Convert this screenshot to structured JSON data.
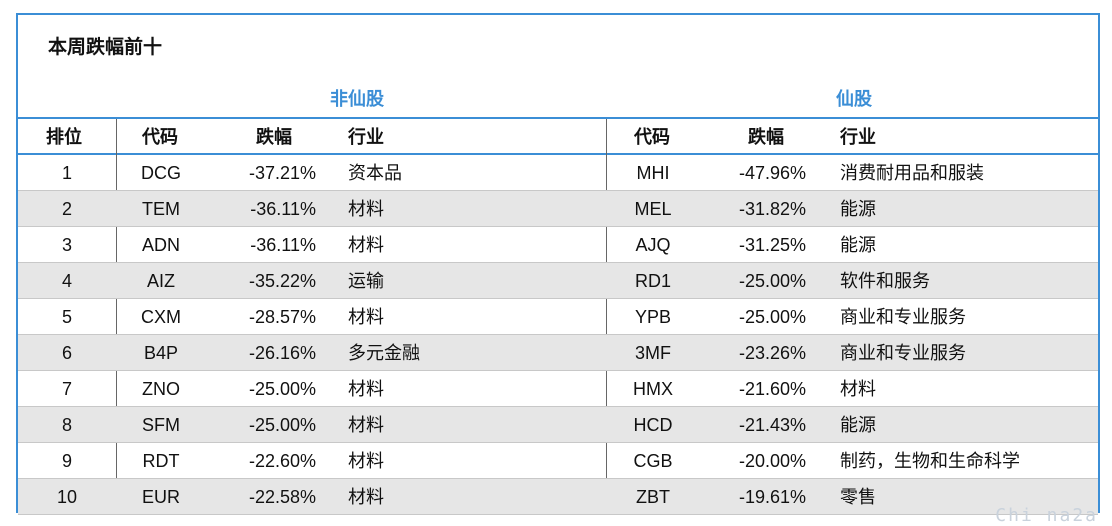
{
  "title": "本周跌幅前十",
  "groups": {
    "left": "非仙股",
    "right": "仙股"
  },
  "headers": {
    "rank": "排位",
    "code": "代码",
    "change": "跌幅",
    "industry": "行业"
  },
  "rows": [
    {
      "rank": "1",
      "code": "DCG",
      "change": "-37.21%",
      "industry": "资本品",
      "code2": "MHI",
      "change2": "-47.96%",
      "industry2": "消费耐用品和服装"
    },
    {
      "rank": "2",
      "code": "TEM",
      "change": "-36.11%",
      "industry": "材料",
      "code2": "MEL",
      "change2": "-31.82%",
      "industry2": "能源"
    },
    {
      "rank": "3",
      "code": "ADN",
      "change": "-36.11%",
      "industry": "材料",
      "code2": "AJQ",
      "change2": "-31.25%",
      "industry2": "能源"
    },
    {
      "rank": "4",
      "code": "AIZ",
      "change": "-35.22%",
      "industry": "运输",
      "code2": "RD1",
      "change2": "-25.00%",
      "industry2": "软件和服务"
    },
    {
      "rank": "5",
      "code": "CXM",
      "change": "-28.57%",
      "industry": "材料",
      "code2": "YPB",
      "change2": "-25.00%",
      "industry2": "商业和专业服务"
    },
    {
      "rank": "6",
      "code": "B4P",
      "change": "-26.16%",
      "industry": "多元金融",
      "code2": "3MF",
      "change2": "-23.26%",
      "industry2": "商业和专业服务"
    },
    {
      "rank": "7",
      "code": "ZNO",
      "change": "-25.00%",
      "industry": "材料",
      "code2": "HMX",
      "change2": "-21.60%",
      "industry2": "材料"
    },
    {
      "rank": "8",
      "code": "SFM",
      "change": "-25.00%",
      "industry": "材料",
      "code2": "HCD",
      "change2": "-21.43%",
      "industry2": "能源"
    },
    {
      "rank": "9",
      "code": "RDT",
      "change": "-22.60%",
      "industry": "材料",
      "code2": "CGB",
      "change2": "-20.00%",
      "industry2": "制药，生物和生命科学"
    },
    {
      "rank": "10",
      "code": "EUR",
      "change": "-22.58%",
      "industry": "材料",
      "code2": "ZBT",
      "change2": "-19.61%",
      "industry2": "零售"
    }
  ],
  "watermark": "Chi na2a",
  "colors": {
    "accent": "#3b8ed6",
    "shade": "#e6e6e6"
  }
}
